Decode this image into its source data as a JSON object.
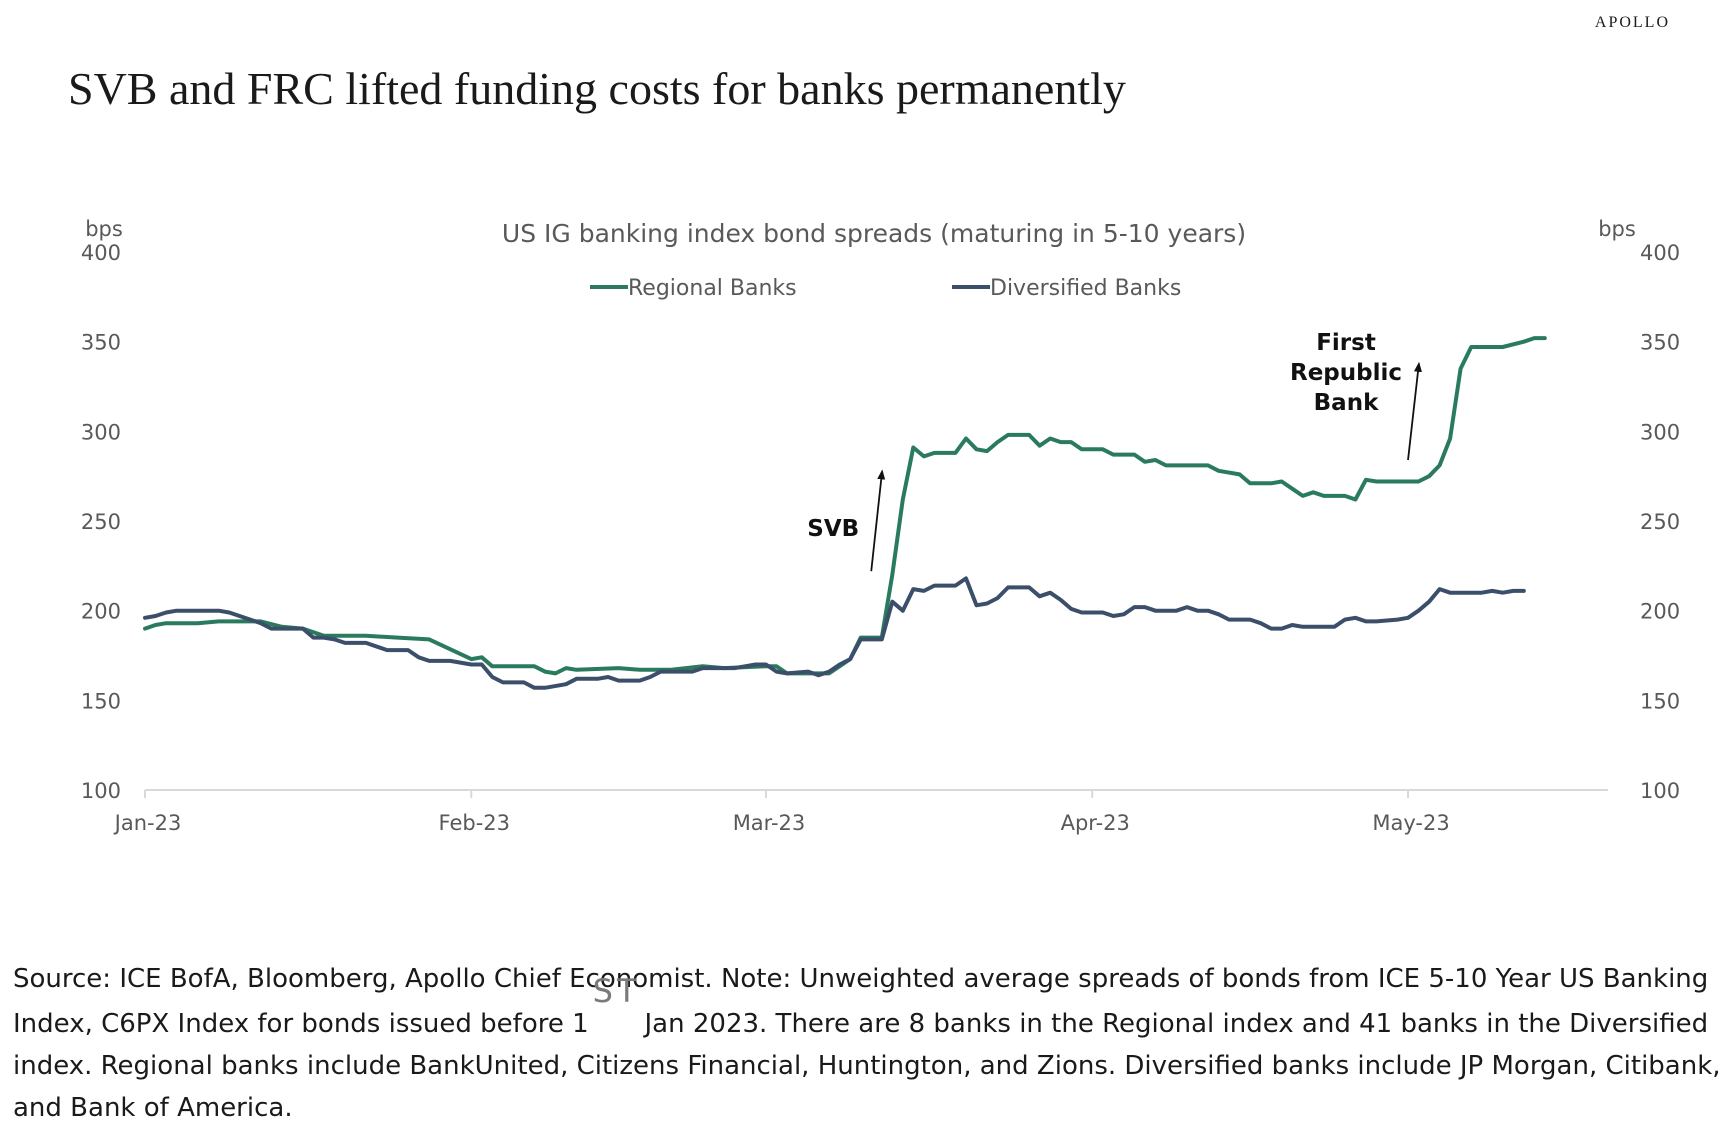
{
  "brand": "APOLLO",
  "title": "SVB and FRC lifted funding costs for banks permanently",
  "source": {
    "before": "Source: ICE BofA, Bloomberg, Apollo Chief Economist. Note: Unweighted average spreads of bonds from ICE 5-10 Year US Banking Index, C6PX Index for bonds issued before 1",
    "sup": "ST",
    "after": "Jan 2023. There are 8 banks in the Regional index and 41 banks in the Diversified index. Regional banks include BankUnited, Citizens Financial, Huntington, and Zions. Diversified banks include JP Morgan, Citibank, and Bank of America."
  },
  "colors": {
    "regional": "#2a7a5e",
    "diversified": "#3b4f6b",
    "axis": "#d9d9d9",
    "text": "#595959"
  },
  "chart_data": {
    "type": "line",
    "title": "US IG banking index bond spreads  (maturing in 5-10 years)",
    "ylabel_left": "bps",
    "ylabel_right": "bps",
    "ylim": [
      100,
      400
    ],
    "yticks": [
      100,
      150,
      200,
      250,
      300,
      350,
      400
    ],
    "x_range": [
      "2023-01-01",
      "2023-05-20"
    ],
    "xticks": [
      {
        "date": "2023-01-01",
        "label": "Jan-23"
      },
      {
        "date": "2023-02-01",
        "label": "Feb-23"
      },
      {
        "date": "2023-03-01",
        "label": "Mar-23"
      },
      {
        "date": "2023-04-01",
        "label": "Apr-23"
      },
      {
        "date": "2023-05-01",
        "label": "May-23"
      }
    ],
    "legend_position": "top-center",
    "grid": false,
    "series": [
      {
        "name": "Regional Banks",
        "color": "#2a7a5e",
        "points": [
          [
            "2023-01-01",
            190
          ],
          [
            "2023-01-02",
            192
          ],
          [
            "2023-01-03",
            193
          ],
          [
            "2023-01-05",
            193
          ],
          [
            "2023-01-06",
            193
          ],
          [
            "2023-01-08",
            194
          ],
          [
            "2023-01-12",
            194
          ],
          [
            "2023-01-14",
            191
          ],
          [
            "2023-01-16",
            190
          ],
          [
            "2023-01-18",
            186
          ],
          [
            "2023-01-22",
            186
          ],
          [
            "2023-01-25",
            185
          ],
          [
            "2023-01-28",
            184
          ],
          [
            "2023-02-01",
            173
          ],
          [
            "2023-02-02",
            174
          ],
          [
            "2023-02-03",
            169
          ],
          [
            "2023-02-05",
            169
          ],
          [
            "2023-02-07",
            169
          ],
          [
            "2023-02-08",
            166
          ],
          [
            "2023-02-09",
            165
          ],
          [
            "2023-02-10",
            168
          ],
          [
            "2023-02-11",
            167
          ],
          [
            "2023-02-15",
            168
          ],
          [
            "2023-02-17",
            167
          ],
          [
            "2023-02-20",
            167
          ],
          [
            "2023-02-23",
            169
          ],
          [
            "2023-02-25",
            168
          ],
          [
            "2023-03-01",
            169
          ],
          [
            "2023-03-02",
            169
          ],
          [
            "2023-03-03",
            165
          ],
          [
            "2023-03-05",
            165
          ],
          [
            "2023-03-07",
            165
          ],
          [
            "2023-03-09",
            173
          ],
          [
            "2023-03-10",
            185
          ],
          [
            "2023-03-11",
            185
          ],
          [
            "2023-03-12",
            185
          ],
          [
            "2023-03-13",
            220
          ],
          [
            "2023-03-14",
            262
          ],
          [
            "2023-03-15",
            291
          ],
          [
            "2023-03-16",
            286
          ],
          [
            "2023-03-17",
            288
          ],
          [
            "2023-03-18",
            288
          ],
          [
            "2023-03-19",
            288
          ],
          [
            "2023-03-20",
            296
          ],
          [
            "2023-03-21",
            290
          ],
          [
            "2023-03-22",
            289
          ],
          [
            "2023-03-23",
            294
          ],
          [
            "2023-03-24",
            298
          ],
          [
            "2023-03-25",
            298
          ],
          [
            "2023-03-26",
            298
          ],
          [
            "2023-03-27",
            292
          ],
          [
            "2023-03-28",
            296
          ],
          [
            "2023-03-29",
            294
          ],
          [
            "2023-03-30",
            294
          ],
          [
            "2023-03-31",
            290
          ],
          [
            "2023-04-02",
            290
          ],
          [
            "2023-04-03",
            287
          ],
          [
            "2023-04-05",
            287
          ],
          [
            "2023-04-06",
            283
          ],
          [
            "2023-04-07",
            284
          ],
          [
            "2023-04-08",
            281
          ],
          [
            "2023-04-10",
            281
          ],
          [
            "2023-04-12",
            281
          ],
          [
            "2023-04-13",
            278
          ],
          [
            "2023-04-15",
            276
          ],
          [
            "2023-04-16",
            271
          ],
          [
            "2023-04-17",
            271
          ],
          [
            "2023-04-18",
            271
          ],
          [
            "2023-04-19",
            272
          ],
          [
            "2023-04-20",
            268
          ],
          [
            "2023-04-21",
            264
          ],
          [
            "2023-04-22",
            266
          ],
          [
            "2023-04-23",
            264
          ],
          [
            "2023-04-25",
            264
          ],
          [
            "2023-04-26",
            262
          ],
          [
            "2023-04-27",
            273
          ],
          [
            "2023-04-28",
            272
          ],
          [
            "2023-04-29",
            272
          ],
          [
            "2023-05-01",
            272
          ],
          [
            "2023-05-02",
            272
          ],
          [
            "2023-05-03",
            275
          ],
          [
            "2023-05-04",
            281
          ],
          [
            "2023-05-05",
            296
          ],
          [
            "2023-05-06",
            335
          ],
          [
            "2023-05-07",
            347
          ],
          [
            "2023-05-08",
            347
          ],
          [
            "2023-05-09",
            347
          ],
          [
            "2023-05-10",
            347
          ],
          [
            "2023-05-12",
            350
          ],
          [
            "2023-05-13",
            352
          ],
          [
            "2023-05-14",
            352
          ]
        ]
      },
      {
        "name": "Diversified Banks",
        "color": "#3b4f6b",
        "points": [
          [
            "2023-01-01",
            196
          ],
          [
            "2023-01-02",
            197
          ],
          [
            "2023-01-03",
            199
          ],
          [
            "2023-01-04",
            200
          ],
          [
            "2023-01-06",
            200
          ],
          [
            "2023-01-08",
            200
          ],
          [
            "2023-01-09",
            199
          ],
          [
            "2023-01-11",
            195
          ],
          [
            "2023-01-12",
            193
          ],
          [
            "2023-01-13",
            190
          ],
          [
            "2023-01-15",
            190
          ],
          [
            "2023-01-16",
            190
          ],
          [
            "2023-01-17",
            185
          ],
          [
            "2023-01-18",
            185
          ],
          [
            "2023-01-19",
            184
          ],
          [
            "2023-01-20",
            182
          ],
          [
            "2023-01-22",
            182
          ],
          [
            "2023-01-24",
            178
          ],
          [
            "2023-01-26",
            178
          ],
          [
            "2023-01-27",
            174
          ],
          [
            "2023-01-28",
            172
          ],
          [
            "2023-01-30",
            172
          ],
          [
            "2023-02-01",
            170
          ],
          [
            "2023-02-02",
            170
          ],
          [
            "2023-02-03",
            163
          ],
          [
            "2023-02-04",
            160
          ],
          [
            "2023-02-06",
            160
          ],
          [
            "2023-02-07",
            157
          ],
          [
            "2023-02-08",
            157
          ],
          [
            "2023-02-10",
            159
          ],
          [
            "2023-02-11",
            162
          ],
          [
            "2023-02-13",
            162
          ],
          [
            "2023-02-14",
            163
          ],
          [
            "2023-02-15",
            161
          ],
          [
            "2023-02-17",
            161
          ],
          [
            "2023-02-18",
            163
          ],
          [
            "2023-02-19",
            166
          ],
          [
            "2023-02-21",
            166
          ],
          [
            "2023-02-22",
            166
          ],
          [
            "2023-02-23",
            168
          ],
          [
            "2023-02-25",
            168
          ],
          [
            "2023-02-26",
            168
          ],
          [
            "2023-02-27",
            169
          ],
          [
            "2023-02-28",
            170
          ],
          [
            "2023-03-01",
            170
          ],
          [
            "2023-03-02",
            166
          ],
          [
            "2023-03-03",
            165
          ],
          [
            "2023-03-05",
            166
          ],
          [
            "2023-03-06",
            164
          ],
          [
            "2023-03-07",
            166
          ],
          [
            "2023-03-08",
            170
          ],
          [
            "2023-03-09",
            173
          ],
          [
            "2023-03-10",
            184
          ],
          [
            "2023-03-12",
            184
          ],
          [
            "2023-03-13",
            205
          ],
          [
            "2023-03-14",
            200
          ],
          [
            "2023-03-15",
            212
          ],
          [
            "2023-03-16",
            211
          ],
          [
            "2023-03-17",
            214
          ],
          [
            "2023-03-19",
            214
          ],
          [
            "2023-03-20",
            218
          ],
          [
            "2023-03-21",
            203
          ],
          [
            "2023-03-22",
            204
          ],
          [
            "2023-03-23",
            207
          ],
          [
            "2023-03-24",
            213
          ],
          [
            "2023-03-26",
            213
          ],
          [
            "2023-03-27",
            208
          ],
          [
            "2023-03-28",
            210
          ],
          [
            "2023-03-29",
            206
          ],
          [
            "2023-03-30",
            201
          ],
          [
            "2023-03-31",
            199
          ],
          [
            "2023-04-01",
            199
          ],
          [
            "2023-04-02",
            199
          ],
          [
            "2023-04-03",
            197
          ],
          [
            "2023-04-04",
            198
          ],
          [
            "2023-04-05",
            202
          ],
          [
            "2023-04-06",
            202
          ],
          [
            "2023-04-07",
            200
          ],
          [
            "2023-04-09",
            200
          ],
          [
            "2023-04-10",
            202
          ],
          [
            "2023-04-11",
            200
          ],
          [
            "2023-04-12",
            200
          ],
          [
            "2023-04-13",
            198
          ],
          [
            "2023-04-14",
            195
          ],
          [
            "2023-04-16",
            195
          ],
          [
            "2023-04-17",
            193
          ],
          [
            "2023-04-18",
            190
          ],
          [
            "2023-04-19",
            190
          ],
          [
            "2023-04-20",
            192
          ],
          [
            "2023-04-21",
            191
          ],
          [
            "2023-04-24",
            191
          ],
          [
            "2023-04-25",
            195
          ],
          [
            "2023-04-26",
            196
          ],
          [
            "2023-04-27",
            194
          ],
          [
            "2023-04-28",
            194
          ],
          [
            "2023-04-30",
            195
          ],
          [
            "2023-05-01",
            196
          ],
          [
            "2023-05-02",
            200
          ],
          [
            "2023-05-03",
            205
          ],
          [
            "2023-05-04",
            212
          ],
          [
            "2023-05-05",
            210
          ],
          [
            "2023-05-06",
            210
          ],
          [
            "2023-05-08",
            210
          ],
          [
            "2023-05-09",
            211
          ],
          [
            "2023-05-10",
            210
          ],
          [
            "2023-05-11",
            211
          ],
          [
            "2023-05-12",
            211
          ]
        ]
      }
    ],
    "annotations": [
      {
        "lines": [
          "SVB"
        ],
        "arrow_from": [
          "2023-03-11",
          222
        ],
        "arrow_to": [
          "2023-03-12",
          276
        ]
      },
      {
        "lines": [
          "First",
          "Republic",
          "Bank"
        ],
        "arrow_from": [
          "2023-05-01",
          284
        ],
        "arrow_to": [
          "2023-05-02",
          336
        ]
      }
    ]
  }
}
